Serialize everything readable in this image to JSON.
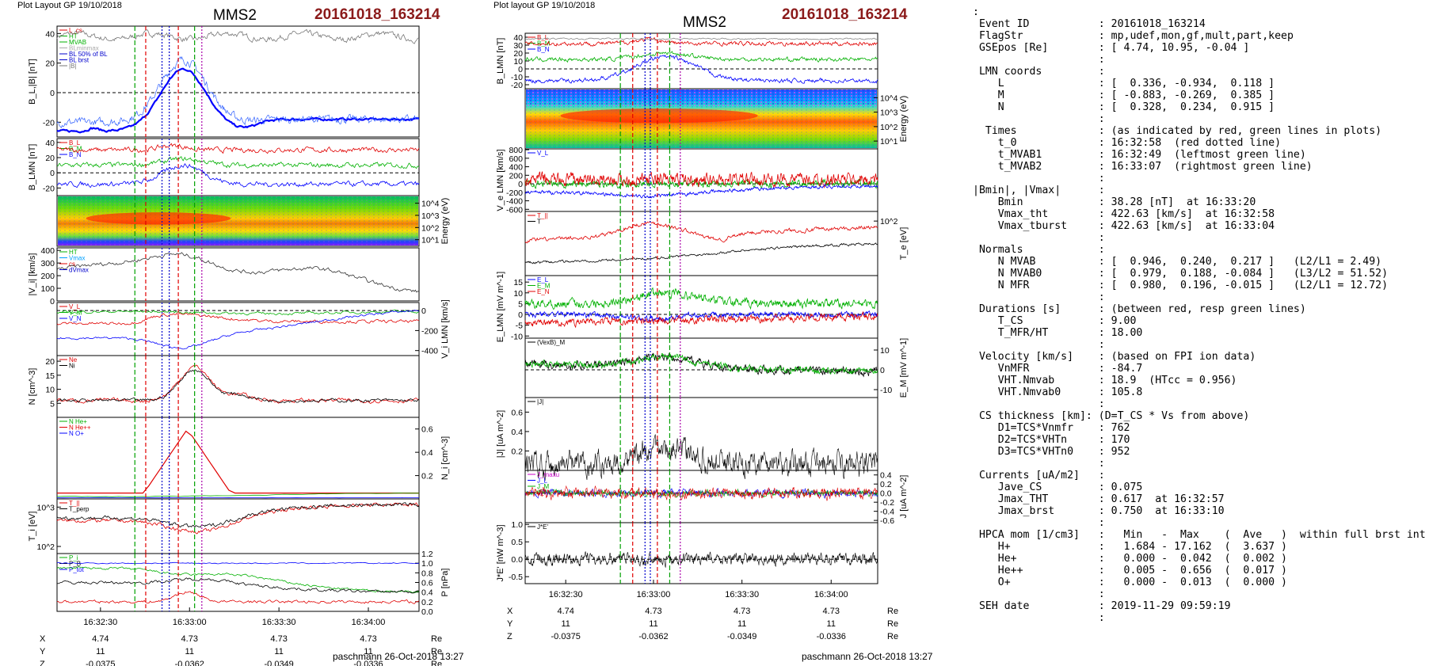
{
  "left": {
    "header": "Plot Layout GP 19/10/2018",
    "sc": "MMS2",
    "event": "20161018_163214",
    "footer": "paschmann 26-Oct-2018 13:27",
    "panels": [
      {
        "id": "bl",
        "ylabel": "B_L,|B| [nT]",
        "yticks": [
          "40",
          "20",
          "0",
          "-20"
        ],
        "ylim": [
          -30,
          45
        ],
        "legend": [
          {
            "t": "L_cs",
            "c": "#e00000"
          },
          {
            "t": "HT",
            "c": "#00b000"
          },
          {
            "t": "MVAB",
            "c": "#00b000"
          },
          {
            "t": "BLminmax",
            "c": "#aaaaaa"
          },
          {
            "t": "BL 50% of BL",
            "c": "#0000cc"
          },
          {
            "t": "BL brst",
            "c": "#0000cc"
          },
          {
            "t": "|B|",
            "c": "#777777"
          }
        ]
      },
      {
        "id": "blmn",
        "ylabel": "B_LMN [nT]",
        "yticks": [
          "40",
          "20",
          "0",
          "-20"
        ],
        "ylim": [
          -30,
          45
        ],
        "legend": [
          {
            "t": "B_L",
            "c": "#e00000"
          },
          {
            "t": "B_M",
            "c": "#00b000"
          },
          {
            "t": "B_N",
            "c": "#0000ff"
          }
        ]
      },
      {
        "id": "spec",
        "ylabel": "Energy (eV)",
        "yticks": [
          "10^4",
          "10^3",
          "10^2",
          "10^1"
        ]
      },
      {
        "id": "vi",
        "ylabel": "|V_i| [km/s]",
        "yticks": [
          "400",
          "300",
          "200",
          "100",
          "0"
        ],
        "ylim": [
          0,
          420
        ],
        "legend": [
          {
            "t": "HT",
            "c": "#00b000"
          },
          {
            "t": "Vmax",
            "c": "#00a0ff"
          },
          {
            "t": "cs",
            "c": "#e00000"
          },
          {
            "t": "dVmax",
            "c": "#0000cc"
          }
        ]
      },
      {
        "id": "vilmn",
        "ylabel": "V_i LMN [km/s]",
        "yticks": [
          "0",
          "-200",
          "-400"
        ],
        "ylim": [
          -450,
          80
        ],
        "legend": [
          {
            "t": "V_L",
            "c": "#e00000"
          },
          {
            "t": "V_M",
            "c": "#00b000"
          },
          {
            "t": "V_N",
            "c": "#0000ff"
          }
        ]
      },
      {
        "id": "n",
        "ylabel": "N [cm^-3]",
        "yticks": [
          "20",
          "15",
          "10",
          "5"
        ],
        "ylim": [
          0,
          22
        ],
        "legend": [
          {
            "t": "Ne",
            "c": "#e00000"
          },
          {
            "t": "Ni",
            "c": "#000000"
          }
        ]
      },
      {
        "id": "ni",
        "ylabel": "N_i [cm^-3]",
        "yticks": [
          "0.6",
          "0.4",
          "0.2"
        ],
        "ylim": [
          0,
          0.7
        ],
        "legend": [
          {
            "t": "N He+",
            "c": "#00b000"
          },
          {
            "t": "N He++",
            "c": "#e00000"
          },
          {
            "t": "N O+",
            "c": "#0000ff"
          }
        ]
      },
      {
        "id": "ti",
        "ylabel": "T_i [eV]",
        "yticks": [
          "10^3",
          "10^2"
        ],
        "legend": [
          {
            "t": "T_||",
            "c": "#e00000"
          },
          {
            "t": "T_perp",
            "c": "#000000"
          }
        ]
      },
      {
        "id": "p",
        "ylabel": "P [nPa]",
        "yticks": [
          "1.2",
          "1.0",
          "0.8",
          "0.6",
          "0.4",
          "0.2",
          "0.0"
        ],
        "ylim": [
          0,
          1.2
        ],
        "legend": [
          {
            "t": "P_i",
            "c": "#00b000"
          },
          {
            "t": "P_B",
            "c": "#000000"
          },
          {
            "t": "P_tot",
            "c": "#0000ff"
          }
        ]
      }
    ],
    "times": [
      "16:32:30",
      "16:33:00",
      "16:33:30",
      "16:34:00"
    ],
    "pos_rows": [
      {
        "lbl": "X",
        "vals": [
          "4.74",
          "4.73",
          "4.73",
          "4.73"
        ],
        "unit": "Re"
      },
      {
        "lbl": "Y",
        "vals": [
          "11",
          "11",
          "11",
          "11"
        ],
        "unit": "Re"
      },
      {
        "lbl": "Z",
        "vals": [
          "-0.0375",
          "-0.0362",
          "-0.0349",
          "-0.0336"
        ],
        "unit": "Re"
      }
    ]
  },
  "mid": {
    "header": "Plot layout GP 19/10/2018",
    "sc": "MMS2",
    "event": "20161018_163214",
    "footer": "paschmann 26-Oct-2018 13:27",
    "panels": [
      {
        "id": "blmn",
        "ylabel": "B_LMN [nT]",
        "yticks": [
          "40",
          "30",
          "20",
          "10",
          "0",
          "-10",
          "-20"
        ],
        "ylim": [
          -25,
          45
        ],
        "legend": [
          {
            "t": "B_L",
            "c": "#e00000"
          },
          {
            "t": "B_M",
            "c": "#00b000"
          },
          {
            "t": "B_N",
            "c": "#0000ff"
          }
        ]
      },
      {
        "id": "spec",
        "ylabel": "Energy (eV)",
        "yticks": [
          "10^4",
          "10^3",
          "10^2",
          "10^1"
        ]
      },
      {
        "id": "ve",
        "ylabel": "V_e LMN [km/s]",
        "yticks": [
          "800",
          "600",
          "400",
          "200",
          "0",
          "-200",
          "-400",
          "-600"
        ],
        "ylim": [
          -650,
          820
        ],
        "legend": [
          {
            "t": "V_L",
            "c": "#0000ff"
          }
        ]
      },
      {
        "id": "te",
        "ylabel": "T_e [eV]",
        "yticks": [
          "10^2"
        ],
        "legend": [
          {
            "t": "T_||",
            "c": "#e00000"
          },
          {
            "t": "T",
            "c": "#000000"
          }
        ]
      },
      {
        "id": "e",
        "ylabel": "E_LMN [mV m^-1]",
        "yticks": [
          "15",
          "10",
          "5",
          "0",
          "-5",
          "-10"
        ],
        "ylim": [
          -11,
          18
        ],
        "legend": [
          {
            "t": "E_L",
            "c": "#0000ff"
          },
          {
            "t": "E_M",
            "c": "#00b000"
          },
          {
            "t": "E_N",
            "c": "#e00000"
          }
        ]
      },
      {
        "id": "em",
        "ylabel": "E_M [mV m^-1]",
        "yticks": [
          "10",
          "0",
          "-10"
        ],
        "ylim": [
          -14,
          16
        ],
        "legend": [
          {
            "t": "(VexB)_M",
            "c": "#000000"
          }
        ]
      },
      {
        "id": "j",
        "ylabel": "|J| [uA m^-2]",
        "yticks": [
          "0.6",
          "0.4",
          "0.2"
        ],
        "ylim": [
          0,
          0.75
        ],
        "legend": [
          {
            "t": "|J|",
            "c": "#000000"
          }
        ]
      },
      {
        "id": "jlmn",
        "ylabel": "J [uA m^-2]",
        "yticks": [
          "0.4",
          "0.2",
          "0.0",
          "-0.2",
          "-0.4",
          "-0.6"
        ],
        "ylim": [
          -0.65,
          0.5
        ],
        "legend": [
          {
            "t": "J_maxu",
            "c": "#cc00cc"
          },
          {
            "t": "J_L",
            "c": "#0000ff"
          },
          {
            "t": "J_M",
            "c": "#00b000"
          },
          {
            "t": "J_N",
            "c": "#e00000"
          }
        ]
      },
      {
        "id": "je",
        "ylabel": "J*E' [nW m^-3]",
        "yticks": [
          "1.0",
          "0.5",
          "0.0",
          "-0.5"
        ],
        "ylim": [
          -0.7,
          1.05
        ],
        "legend": [
          {
            "t": "J*E'",
            "c": "#000000"
          }
        ]
      }
    ],
    "times": [
      "16:32:30",
      "16:33:00",
      "16:33:30",
      "16:34:00"
    ],
    "pos_rows": [
      {
        "lbl": "X",
        "vals": [
          "4.74",
          "4.73",
          "4.73",
          "4.73"
        ],
        "unit": "Re"
      },
      {
        "lbl": "Y",
        "vals": [
          "11",
          "11",
          "11",
          "11"
        ],
        "unit": "Re"
      },
      {
        "lbl": "Z",
        "vals": [
          "-0.0375",
          "-0.0362",
          "-0.0349",
          "-0.0336"
        ],
        "unit": "Re"
      }
    ]
  },
  "chart_data": [
    {
      "type": "line",
      "title": "MMS2 20161018_163214 (left)",
      "x_range": [
        "16:32:14",
        "16:34:30"
      ],
      "series": [
        {
          "name": "BL",
          "approx": "-20 -> +22 -> -12 nT"
        },
        {
          "name": "|B|",
          "approx": "~38 nT"
        }
      ],
      "markers": {
        "t_0": "16:32:58",
        "t_MVAB1": "16:32:49",
        "t_MVAB2": "16:33:07"
      }
    },
    {
      "type": "line",
      "title": "MMS2 20161018_163214 (right)",
      "x_range": [
        "16:32:14",
        "16:34:30"
      ],
      "series": [
        {
          "name": "|J|",
          "max": 0.75
        },
        {
          "name": "J*E'",
          "max": 1.0
        }
      ]
    }
  ],
  "summary": {
    "lines": [
      ":",
      " Event ID           : 20161018_163214",
      " FlagStr            : mp,udef,mon,gf,mult,part,keep",
      " GSEpos [Re]        : [ 4.74, 10.95, -0.04 ]",
      "                    :",
      " LMN coords         :",
      "    L               : [  0.336, -0.934,  0.118 ]",
      "    M               : [ -0.883, -0.269,  0.385 ]",
      "    N               : [  0.328,  0.234,  0.915 ]",
      "                    :",
      "  Times             : (as indicated by red, green lines in plots)",
      "    t_0             : 16:32:58  (red dotted line)",
      "    t_MVAB1         : 16:32:49  (leftmost green line)",
      "    t_MVAB2         : 16:33:07  (rightmost green line)",
      "                    :",
      "|Bmin|, |Vmax|      :",
      "    Bmin            : 38.28 [nT]  at 16:33:20",
      "    Vmax_tht        : 422.63 [km/s]  at 16:32:58",
      "    Vmax_tburst     : 422.63 [km/s]  at 16:33:04",
      "                    :",
      " Normals            :",
      "    N MVAB          : [  0.946,  0.240,  0.217 ]   (L2/L1 = 2.49)",
      "    N MVAB0         : [  0.979,  0.188, -0.084 ]   (L3/L2 = 51.52)",
      "    N MFR           : [  0.980,  0.196, -0.015 ]   (L2/L1 = 12.72)",
      "                    :",
      " Durations [s]      : (between red, resp green lines)",
      "    T_CS            : 9.00",
      "    T_MFR/HT        : 18.00",
      "                    :",
      " Velocity [km/s]    : (based on FPI ion data)",
      "    VnMFR           : -84.7",
      "    VHT.Nmvab       : 18.9  (HTcc = 0.956)",
      "    VHT.Nmvab0      : 105.8",
      "                    :",
      " CS thickness [km]: (D=T_CS * Vs from above)",
      "    D1=TCS*Vnmfr    : 762",
      "    D2=TCS*VHTn     : 170",
      "    D3=TCS*VHTn0    : 952",
      "                    :",
      " Currents [uA/m2]   :",
      "    Jave_CS         : 0.075",
      "    Jmax_THT        : 0.617  at 16:32:57",
      "    Jmax_brst       : 0.750  at 16:33:10",
      "                    :",
      " HPCA mom [1/cm3]   :   Min   -  Max    (  Ave   )  within full brst int",
      "    H+              :   1.684 - 17.162  (  3.637 )",
      "    He+             :   0.000 -  0.042  (  0.002 )",
      "    He++            :   0.005 -  0.656  (  0.017 )",
      "    O+              :   0.000 -  0.013  (  0.000 )",
      "                    :",
      " SEH date           : 2019-11-29 09:59:19",
      "                    :"
    ]
  }
}
